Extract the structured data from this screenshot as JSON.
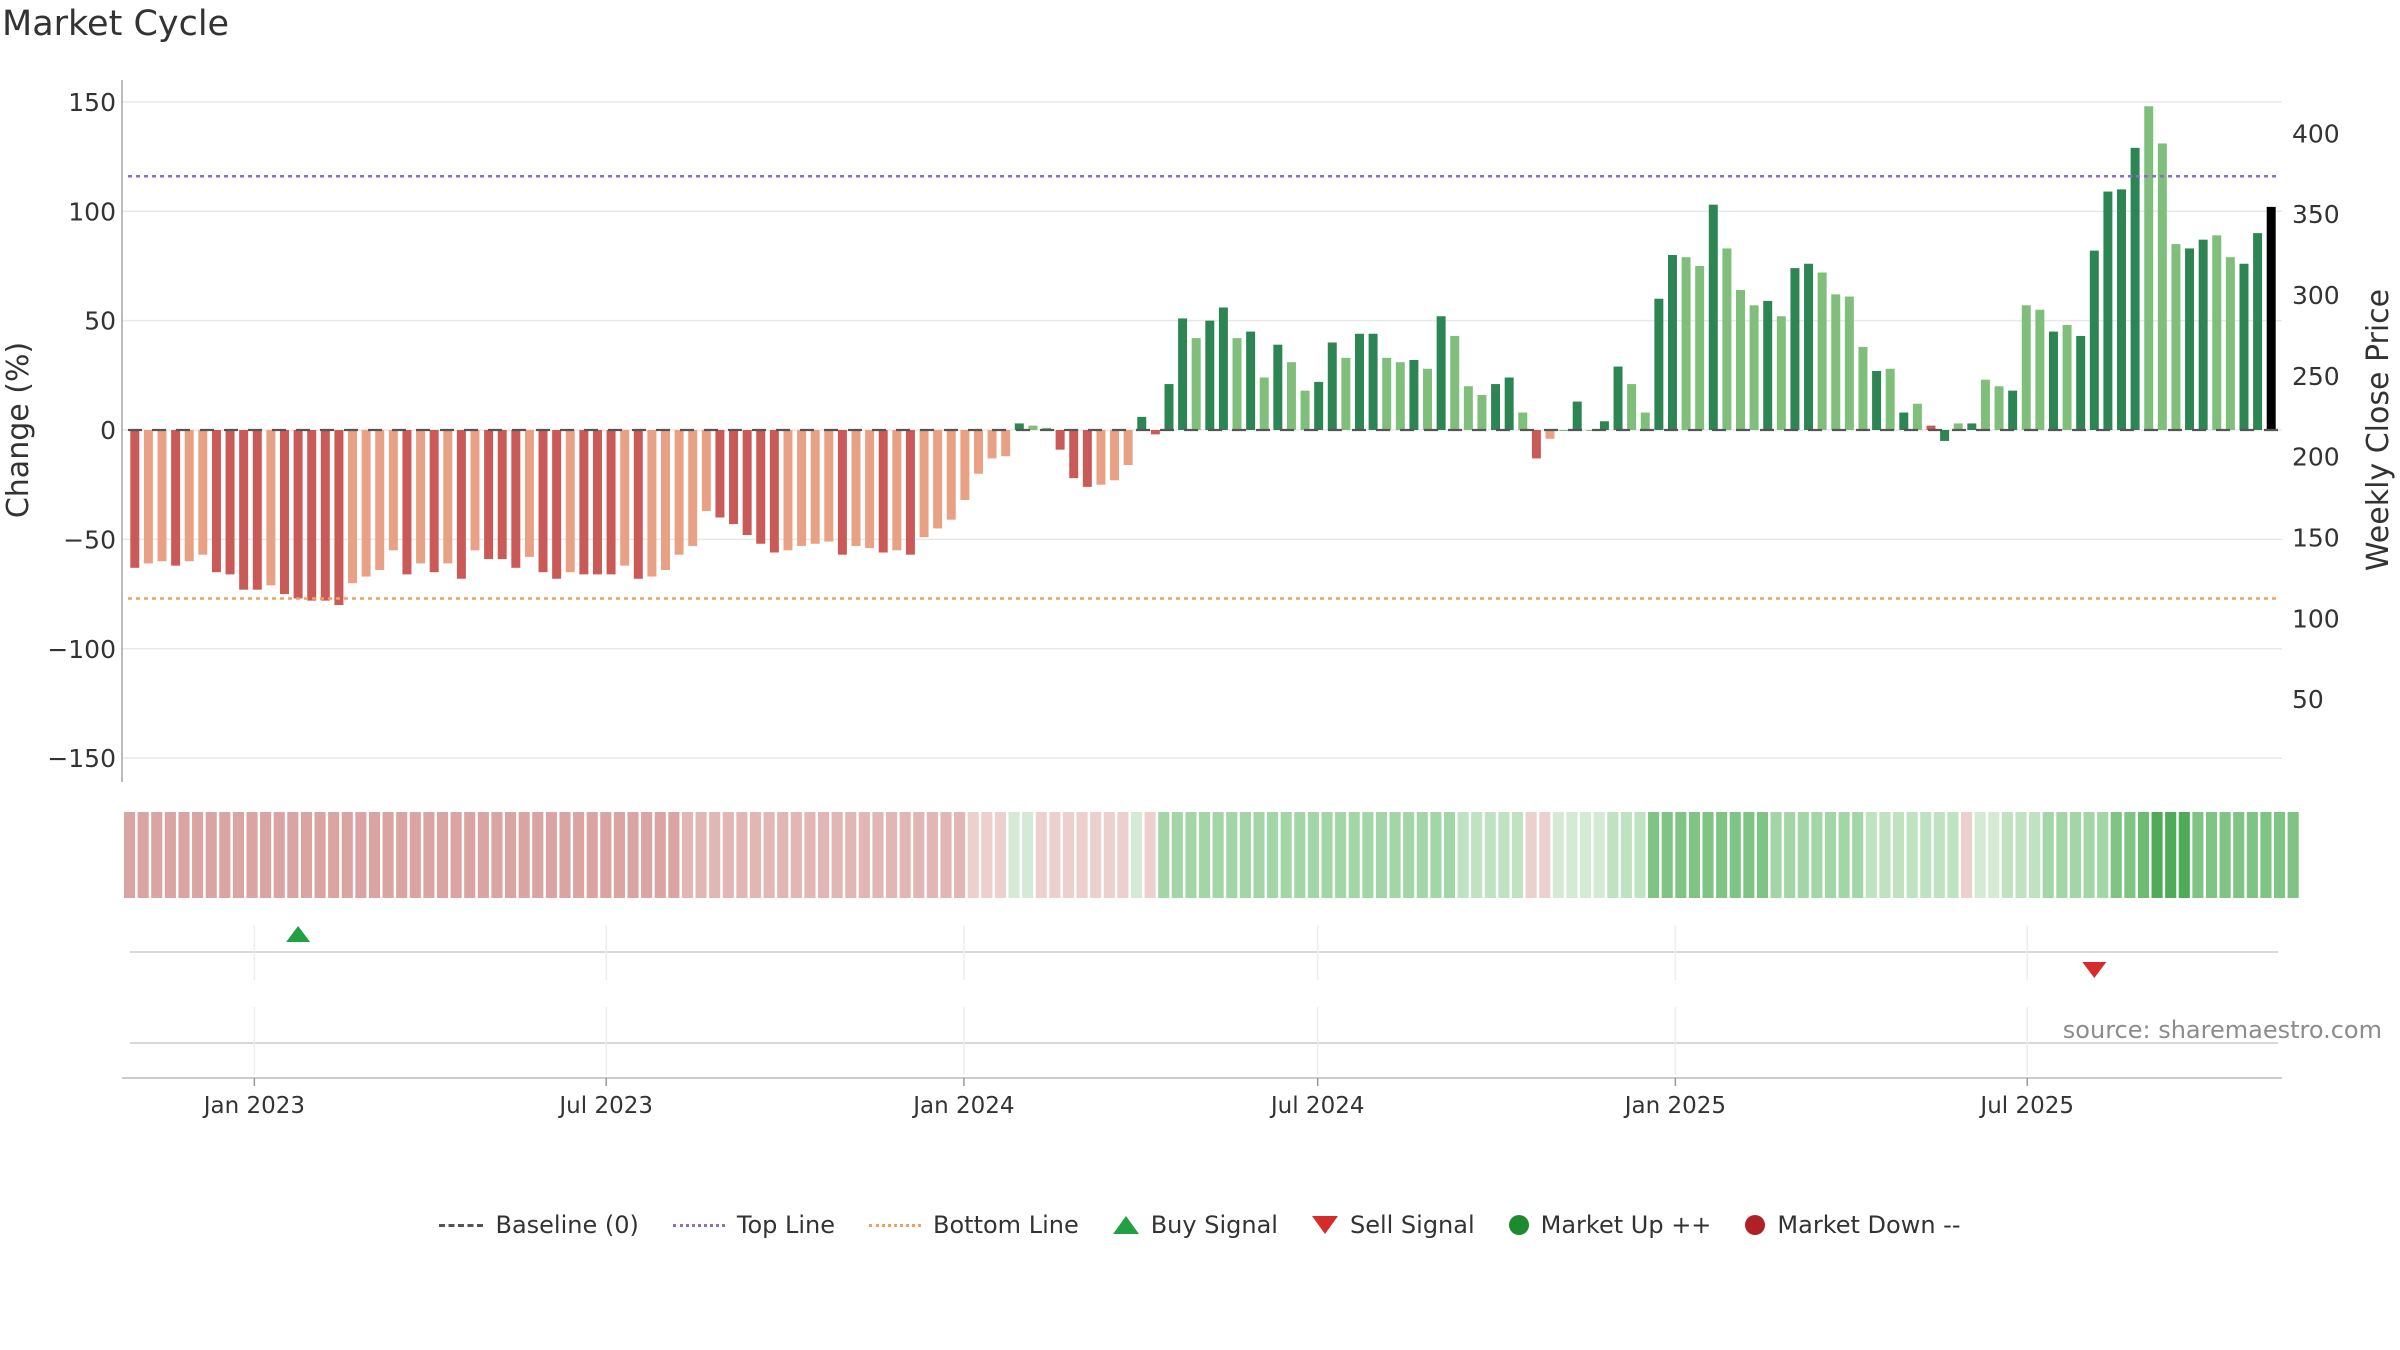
{
  "chart_data": {
    "type": "bar",
    "title": "Market Cycle",
    "ylabel": "Change (%)",
    "y2label": "Weekly Close Price",
    "ylim": [
      -160,
      160
    ],
    "y2lim": [
      0,
      433
    ],
    "y_ticks": [
      150,
      100,
      50,
      0,
      -50,
      -100,
      -150
    ],
    "y_tick_labels": [
      "150",
      "100",
      "50",
      "0",
      "−50",
      "−100",
      "−150"
    ],
    "y2_ticks": [
      400,
      350,
      300,
      250,
      200,
      150,
      100,
      50
    ],
    "y2_tick_labels": [
      "400",
      "350",
      "300",
      "250",
      "200",
      "150",
      "100",
      "50"
    ],
    "x_tick_labels": [
      "Jan 2023",
      "Jul 2023",
      "Jan 2024",
      "Jul 2024",
      "Jan 2025",
      "Jul 2025"
    ],
    "top_line": 116,
    "bottom_line": -77,
    "grid": true,
    "legend_position": "bottom-center",
    "start_week": "2022-10-28",
    "values": [
      -63,
      -61,
      -60,
      -62,
      -60,
      -57,
      -65,
      -66,
      -73,
      -73,
      -71,
      -75,
      -77,
      -78,
      -78,
      -80,
      -70,
      -67,
      -64,
      -55,
      -66,
      -61,
      -65,
      -61,
      -68,
      -55,
      -59,
      -59,
      -63,
      -58,
      -65,
      -68,
      -65,
      -66,
      -66,
      -66,
      -62,
      -68,
      -67,
      -64,
      -57,
      -53,
      -37,
      -40,
      -43,
      -48,
      -52,
      -56,
      -55,
      -53,
      -52,
      -51,
      -57,
      -53,
      -54,
      -56,
      -55,
      -57,
      -49,
      -45,
      -41,
      -32,
      -20,
      -13,
      -12,
      3,
      2,
      1,
      -9,
      -22,
      -26,
      -25,
      -23,
      -16,
      6,
      -2,
      21,
      51,
      42,
      50,
      56,
      42,
      45,
      24,
      39,
      31,
      18,
      22,
      40,
      33,
      44,
      44,
      33,
      31,
      32,
      28,
      52,
      43,
      20,
      16,
      21,
      24,
      8,
      -13,
      -4,
      0,
      13,
      0,
      4,
      29,
      21,
      8,
      60,
      80,
      79,
      75,
      103,
      83,
      64,
      57,
      59,
      52,
      74,
      76,
      72,
      62,
      61,
      38,
      27,
      28,
      8,
      12,
      2,
      -5,
      3,
      3,
      23,
      20,
      18,
      57,
      55,
      45,
      48,
      43,
      82,
      109,
      110,
      129,
      148,
      131,
      85,
      83,
      87,
      89,
      79,
      76,
      90,
      102
    ],
    "cycle_colors": [
      "#c95a58",
      "#e9a186",
      "#e9a186",
      "#c95a58",
      "#e9a186",
      "#e9a186",
      "#c95a58",
      "#c95a58",
      "#c95a58",
      "#c95a58",
      "#e9a186",
      "#c95a58",
      "#c95a58",
      "#c95a58",
      "#c95a58",
      "#c95a58",
      "#e9a186",
      "#e9a186",
      "#e9a186",
      "#e9a186",
      "#c95a58",
      "#e9a186",
      "#c95a58",
      "#e9a186",
      "#c95a58",
      "#e9a186",
      "#c95a58",
      "#c95a58",
      "#c95a58",
      "#e9a186",
      "#c95a58",
      "#c95a58",
      "#e9a186",
      "#c95a58",
      "#c95a58",
      "#c95a58",
      "#e9a186",
      "#c95a58",
      "#e9a186",
      "#e9a186",
      "#e9a186",
      "#e9a186",
      "#e9a186",
      "#c95a58",
      "#c95a58",
      "#c95a58",
      "#c95a58",
      "#c95a58",
      "#e9a186",
      "#e9a186",
      "#e9a186",
      "#e9a186",
      "#c95a58",
      "#e9a186",
      "#e9a186",
      "#c95a58",
      "#e9a186",
      "#c95a58",
      "#e9a186",
      "#e9a186",
      "#e9a186",
      "#e9a186",
      "#e9a186",
      "#e9a186",
      "#e9a186",
      "#2e8554",
      "#7fbf7b",
      "#7fbf7b",
      "#c95a58",
      "#c95a58",
      "#c95a58",
      "#e9a186",
      "#e9a186",
      "#e9a186",
      "#2e8554",
      "#c95a58",
      "#2e8554",
      "#2e8554",
      "#7fbf7b",
      "#2e8554",
      "#2e8554",
      "#7fbf7b",
      "#2e8554",
      "#7fbf7b",
      "#2e8554",
      "#7fbf7b",
      "#7fbf7b",
      "#2e8554",
      "#2e8554",
      "#7fbf7b",
      "#2e8554",
      "#2e8554",
      "#7fbf7b",
      "#7fbf7b",
      "#2e8554",
      "#7fbf7b",
      "#2e8554",
      "#7fbf7b",
      "#7fbf7b",
      "#7fbf7b",
      "#2e8554",
      "#2e8554",
      "#7fbf7b",
      "#c95a58",
      "#e9a186",
      "#7fbf7b",
      "#2e8554",
      "#7fbf7b",
      "#2e8554",
      "#2e8554",
      "#7fbf7b",
      "#7fbf7b",
      "#2e8554",
      "#2e8554",
      "#7fbf7b",
      "#7fbf7b",
      "#2e8554",
      "#7fbf7b",
      "#7fbf7b",
      "#7fbf7b",
      "#2e8554",
      "#7fbf7b",
      "#2e8554",
      "#2e8554",
      "#7fbf7b",
      "#7fbf7b",
      "#7fbf7b",
      "#7fbf7b",
      "#2e8554",
      "#7fbf7b",
      "#2e8554",
      "#7fbf7b",
      "#c95a58",
      "#2e8554",
      "#7fbf7b",
      "#2e8554",
      "#7fbf7b",
      "#7fbf7b",
      "#2e8554",
      "#7fbf7b",
      "#7fbf7b",
      "#2e8554",
      "#7fbf7b",
      "#2e8554",
      "#2e8554",
      "#2e8554",
      "#2e8554",
      "#2e8554",
      "#7fbf7b",
      "#7fbf7b",
      "#7fbf7b",
      "#2e8554",
      "#2e8554",
      "#7fbf7b",
      "#7fbf7b",
      "#2e8554",
      "#2e8554"
    ],
    "heat_colors": [
      "#d9a4a2",
      "#d9a4a2",
      "#d9a4a2",
      "#d9a4a2",
      "#d9a4a2",
      "#d9a4a2",
      "#d9a4a2",
      "#d9a4a2",
      "#d9a4a2",
      "#d9a4a2",
      "#d9a4a2",
      "#d9a4a2",
      "#d9a4a2",
      "#d9a4a2",
      "#d9a4a2",
      "#d9a4a2",
      "#d9a4a2",
      "#d9a4a2",
      "#d9a4a2",
      "#d9a4a2",
      "#d9a4a2",
      "#d9a4a2",
      "#d9a4a2",
      "#d9a4a2",
      "#d9a4a2",
      "#d9a4a2",
      "#d9a4a2",
      "#d9a4a2",
      "#d9a4a2",
      "#d9a4a2",
      "#d9a4a2",
      "#d9a4a2",
      "#d9a4a2",
      "#d9a4a2",
      "#d9a4a2",
      "#d9a4a2",
      "#d9a4a2",
      "#d9a4a2",
      "#d9a4a2",
      "#d9a4a2",
      "#d9a4a2",
      "#e2b6b4",
      "#e2b6b4",
      "#e2b6b4",
      "#e2b6b4",
      "#e2b6b4",
      "#e2b6b4",
      "#e2b6b4",
      "#e2b6b4",
      "#e2b6b4",
      "#e2b6b4",
      "#e2b6b4",
      "#e2b6b4",
      "#e2b6b4",
      "#e2b6b4",
      "#e2b6b4",
      "#e2b6b4",
      "#e2b6b4",
      "#e2b6b4",
      "#e2b6b4",
      "#e2b6b4",
      "#e2b6b4",
      "#ecd0ce",
      "#ecd0ce",
      "#ecd0ce",
      "#d4ead4",
      "#d4ead4",
      "#ecd0ce",
      "#ecd0ce",
      "#ecd0ce",
      "#ecd0ce",
      "#ecd0ce",
      "#ecd0ce",
      "#ecd0ce",
      "#d4ead4",
      "#ecd0ce",
      "#a3d6a7",
      "#a3d6a7",
      "#a3d6a7",
      "#a3d6a7",
      "#a3d6a7",
      "#a3d6a7",
      "#a3d6a7",
      "#a3d6a7",
      "#a3d6a7",
      "#a3d6a7",
      "#a3d6a7",
      "#a3d6a7",
      "#a3d6a7",
      "#a3d6a7",
      "#a3d6a7",
      "#a3d6a7",
      "#a3d6a7",
      "#a3d6a7",
      "#a3d6a7",
      "#a3d6a7",
      "#a3d6a7",
      "#a3d6a7",
      "#bfe2c1",
      "#bfe2c1",
      "#bfe2c1",
      "#bfe2c1",
      "#bfe2c1",
      "#ecd0ce",
      "#ecd0ce",
      "#d4ead4",
      "#d4ead4",
      "#d4ead4",
      "#d4ead4",
      "#bfe2c1",
      "#bfe2c1",
      "#bfe2c1",
      "#80c485",
      "#80c485",
      "#80c485",
      "#80c485",
      "#80c485",
      "#80c485",
      "#80c485",
      "#80c485",
      "#80c485",
      "#a3d6a7",
      "#a3d6a7",
      "#a3d6a7",
      "#a3d6a7",
      "#a3d6a7",
      "#a3d6a7",
      "#a3d6a7",
      "#bfe2c1",
      "#bfe2c1",
      "#bfe2c1",
      "#bfe2c1",
      "#bfe2c1",
      "#bfe2c1",
      "#bfe2c1",
      "#ecd0ce",
      "#d4ead4",
      "#d4ead4",
      "#bfe2c1",
      "#bfe2c1",
      "#bfe2c1",
      "#a3d6a7",
      "#a3d6a7",
      "#a3d6a7",
      "#a3d6a7",
      "#a3d6a7",
      "#80c485",
      "#80c485",
      "#6dbc74",
      "#4fab58",
      "#4fab58",
      "#4fab58",
      "#80c485",
      "#80c485",
      "#80c485",
      "#80c485",
      "#80c485",
      "#80c485",
      "#80c485",
      "#80c485"
    ],
    "signals": [
      {
        "type": "buy",
        "week": 12
      },
      {
        "type": "sell",
        "week": 144
      }
    ],
    "source_text": "source: sharemaestro.com",
    "legend": [
      {
        "symbol": "baseline",
        "label": "Baseline (0)"
      },
      {
        "symbol": "top-line",
        "label": "Top Line"
      },
      {
        "symbol": "bottom-line",
        "label": "Bottom Line"
      },
      {
        "symbol": "buy",
        "label": "Buy Signal"
      },
      {
        "symbol": "sell",
        "label": "Sell Signal"
      },
      {
        "symbol": "up",
        "label": "Market Up ++"
      },
      {
        "symbol": "down",
        "label": "Market Down --"
      }
    ],
    "colors": {
      "strong_down": "#c95a58",
      "weak_down": "#e9a186",
      "strong_up": "#2e8554",
      "weak_up": "#7fbf7b",
      "top_line": "#8e6cc8",
      "bottom_line": "#f0a060",
      "buy": "#23a043",
      "sell": "#d62b2b"
    }
  }
}
